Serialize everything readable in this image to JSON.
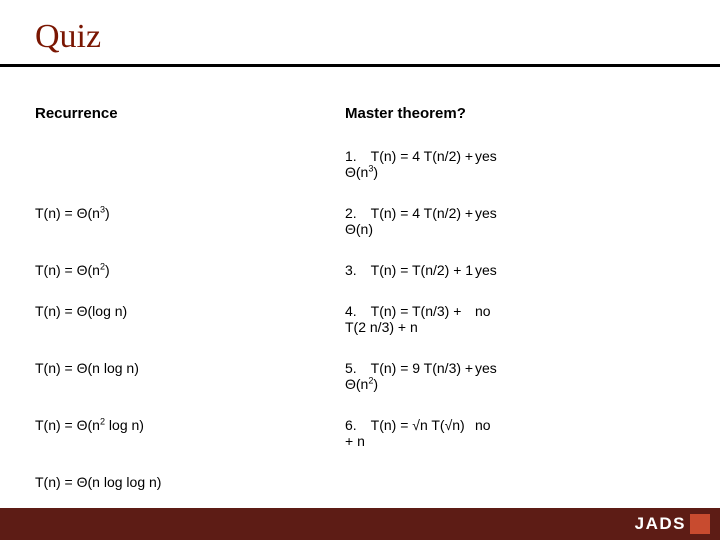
{
  "title": "Quiz",
  "colors": {
    "title_color": "#7a1602",
    "underline_color": "#000000",
    "footer_bg": "#5d1c15",
    "logo_accent": "#c84b2f",
    "text_color": "#000000",
    "background": "#ffffff"
  },
  "typography": {
    "title_font": "Georgia",
    "title_size_pt": 26,
    "body_font": "Arial",
    "header_size_pt": 11,
    "body_size_pt": 10
  },
  "headers": {
    "recurrence": "Recurrence",
    "master": "Master theorem?"
  },
  "rows": [
    {
      "num": "1.",
      "recurrence_html": "T(n) = 4 T(n/2) + Θ(n<sup>3</sup>)",
      "answer": "yes",
      "solution_html": "T(n) = Θ(n<sup>3</sup>)"
    },
    {
      "num": "2.",
      "recurrence_html": "T(n) = 4 T(n/2) + Θ(n)",
      "answer": "yes",
      "solution_html": "T(n) = Θ(n<sup>2</sup>)"
    },
    {
      "num": "3.",
      "recurrence_html": "T(n) = T(n/2) + 1",
      "answer": "yes",
      "solution_html": "T(n) = Θ(log n)"
    },
    {
      "num": "4.",
      "recurrence_html": "T(n) = T(n/3) + T(2 n/3) + n",
      "answer": "no",
      "solution_html": "T(n) = Θ(n log n)"
    },
    {
      "num": "5.",
      "recurrence_html": "T(n) = 9 T(n/3) + Θ(n<sup>2</sup>)",
      "answer": "yes",
      "solution_html": "T(n) = Θ(n<sup>2</sup> log n)"
    },
    {
      "num": "6.",
      "recurrence_html": "T(n) = √n T(√n) + n",
      "answer": "no",
      "solution_html": "T(n) = Θ(n log log n)"
    }
  ],
  "footer": {
    "logo_text": "JADS"
  }
}
